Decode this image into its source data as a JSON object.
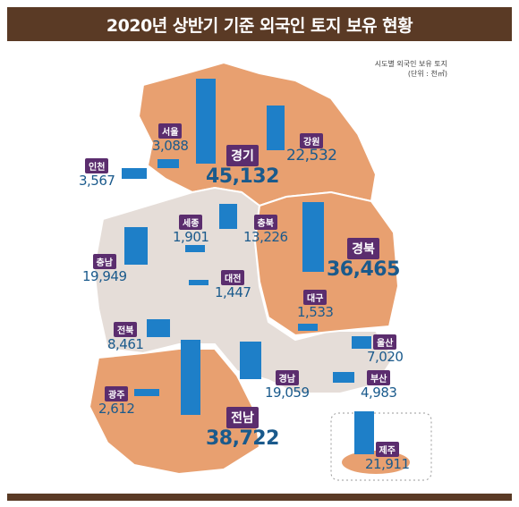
{
  "title": "2020년 상반기 기준 외국인 토지 보유 현황",
  "note": {
    "line1": "시도별 외국인 보유 토지",
    "line2": "(단위 : 천㎡)"
  },
  "colors": {
    "highlight": "#e8a070",
    "other": "#e5ddd8",
    "bar": "#1e7fc8",
    "badge": "#5b2d6e",
    "value": "#1a5a8c"
  },
  "regions": [
    {
      "name": "서울",
      "value": "3,088"
    },
    {
      "name": "경기",
      "value": "45,132"
    },
    {
      "name": "강원",
      "value": "22,532"
    },
    {
      "name": "인천",
      "value": "3,567"
    },
    {
      "name": "세종",
      "value": "1,901"
    },
    {
      "name": "충북",
      "value": "13,226"
    },
    {
      "name": "경북",
      "value": "36,465"
    },
    {
      "name": "충남",
      "value": "19,949"
    },
    {
      "name": "대전",
      "value": "1,447"
    },
    {
      "name": "대구",
      "value": "1,533"
    },
    {
      "name": "전북",
      "value": "8,461"
    },
    {
      "name": "울산",
      "value": "7,020"
    },
    {
      "name": "경남",
      "value": "19,059"
    },
    {
      "name": "부산",
      "value": "4,983"
    },
    {
      "name": "광주",
      "value": "2,612"
    },
    {
      "name": "전남",
      "value": "38,722"
    },
    {
      "name": "제주",
      "value": "21,911"
    }
  ]
}
